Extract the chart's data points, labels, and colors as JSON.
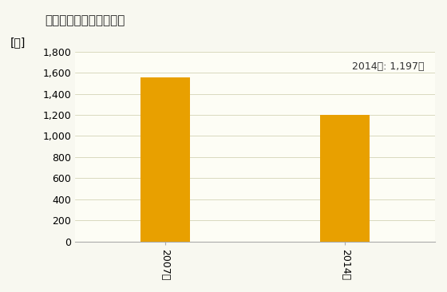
{
  "title": "小売業の従業者数の推移",
  "ylabel": "[人]",
  "categories": [
    "2007年",
    "2014年"
  ],
  "values": [
    1554,
    1197
  ],
  "bar_color": "#E8A000",
  "annotation": "2014年: 1,197人",
  "ylim": [
    0,
    1800
  ],
  "yticks": [
    0,
    200,
    400,
    600,
    800,
    1000,
    1200,
    1400,
    1600,
    1800
  ],
  "fig_bg_color": "#F8F8F0",
  "plot_bg_color": "#FDFDF5",
  "title_fontsize": 11,
  "label_fontsize": 10,
  "tick_fontsize": 9,
  "annotation_fontsize": 9,
  "bar_width": 0.55
}
